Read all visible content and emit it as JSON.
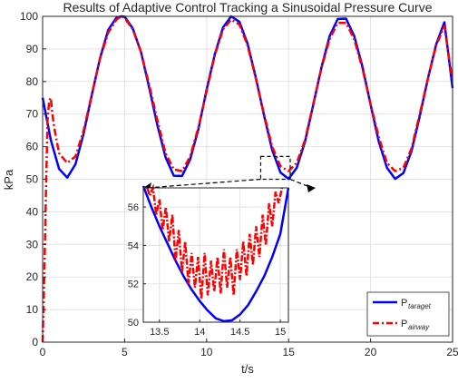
{
  "chart_data": {
    "type": "line",
    "title": "Results of Adaptive Control Tracking a Sinusoidal Pressure Curve",
    "xlabel": "t/s",
    "ylabel": "kPa",
    "xlim": [
      0,
      25
    ],
    "ylim": [
      0,
      100
    ],
    "xticks": [
      0,
      5,
      10,
      15,
      20,
      25
    ],
    "yticks": [
      0,
      10,
      20,
      30,
      40,
      50,
      60,
      70,
      80,
      90,
      100
    ],
    "grid": true,
    "legend_position": "bottom-right",
    "series": [
      {
        "name": "P_taraget",
        "legend_main": "P",
        "legend_sub": "taraget",
        "color": "#0000ff",
        "style": "solid",
        "x": [
          0,
          0.5,
          1.0,
          1.5,
          2.0,
          2.5,
          3.0,
          3.5,
          4.0,
          4.5,
          4.8,
          5.0,
          5.5,
          6.0,
          6.5,
          7.0,
          7.5,
          8.0,
          8.5,
          9.0,
          9.5,
          10.0,
          10.5,
          11.0,
          11.5,
          12.0,
          12.5,
          13.0,
          13.5,
          14.0,
          14.5,
          15.0,
          15.5,
          16.0,
          16.5,
          17.0,
          17.5,
          18.0,
          18.5,
          19.0,
          19.5,
          20.0,
          20.5,
          21.0,
          21.5,
          22.0,
          22.5,
          23.0,
          23.5,
          24.0,
          24.5,
          25.0
        ],
        "y": [
          75,
          62.1,
          53.2,
          50.5,
          54.6,
          64.0,
          75.8,
          87.2,
          95.8,
          99.6,
          100,
          99.9,
          96.3,
          89.0,
          78.1,
          66.5,
          56.7,
          51.1,
          51.0,
          56.1,
          65.4,
          77.5,
          88.3,
          96.6,
          100,
          98.3,
          91.6,
          81.3,
          69.6,
          59.0,
          52.1,
          50.1,
          53.5,
          61.5,
          72.7,
          84.3,
          93.9,
          99.2,
          99.3,
          94.0,
          84.6,
          72.9,
          61.6,
          53.5,
          50.1,
          51.9,
          58.7,
          69.3,
          81.0,
          91.4,
          98.2,
          78.0
        ]
      },
      {
        "name": "P_airway",
        "legend_main": "P",
        "legend_sub": "airway",
        "color": "#ff0000",
        "style": "dash-dot",
        "x": [
          0,
          0.1,
          0.2,
          0.3,
          0.4,
          0.5,
          0.6,
          0.7,
          1.0,
          1.5,
          2.0,
          2.5,
          3.0,
          3.5,
          4.0,
          4.5,
          4.8,
          5.0,
          5.5,
          6.0,
          6.5,
          7.0,
          7.5,
          8.0,
          8.5,
          9.0,
          9.5,
          10.0,
          10.5,
          11.0,
          11.5,
          12.0,
          12.5,
          13.0,
          13.5,
          14.0,
          14.5,
          15.0,
          15.5,
          16.0,
          16.5,
          17.0,
          17.5,
          18.0,
          18.5,
          19.0,
          19.5,
          20.0,
          20.5,
          21.0,
          21.5,
          22.0,
          22.5,
          23.0,
          23.5,
          24.0,
          24.5,
          25.0
        ],
        "y": [
          0,
          20,
          45,
          68,
          74,
          75,
          70,
          66,
          58,
          55,
          57,
          65,
          76,
          87,
          95,
          99,
          100,
          99.5,
          96,
          89,
          79,
          68,
          58,
          53,
          52.5,
          57,
          66,
          77,
          88,
          96,
          99,
          97.5,
          91,
          81,
          70,
          60,
          54,
          52.5,
          55,
          62,
          73,
          84,
          93,
          98,
          98,
          93,
          84,
          73,
          63,
          55,
          52.5,
          53.5,
          59.5,
          70,
          81,
          91,
          97,
          80
        ]
      }
    ],
    "inset": {
      "xlim": [
        13.3,
        15.1
      ],
      "ylim": [
        50,
        57
      ],
      "xticks": [
        13.5,
        14,
        14.5,
        15
      ],
      "yticks": [
        50,
        52,
        54,
        56
      ],
      "zoom_box": {
        "x": [
          13.3,
          15.1
        ],
        "y": [
          50,
          57
        ]
      },
      "target": {
        "x": [
          13.3,
          13.4,
          13.5,
          13.6,
          13.7,
          13.8,
          13.9,
          14.0,
          14.1,
          14.2,
          14.3,
          14.4,
          14.5,
          14.6,
          14.7,
          14.8,
          14.9,
          15.0,
          15.1
        ],
        "y": [
          57.1,
          56.0,
          55.0,
          54.1,
          53.2,
          52.4,
          51.7,
          51.1,
          50.6,
          50.2,
          50.05,
          50.1,
          50.4,
          50.9,
          51.6,
          52.4,
          53.4,
          54.6,
          57.0
        ]
      },
      "airway": {
        "x": [
          13.35,
          13.38,
          13.42,
          13.46,
          13.5,
          13.54,
          13.58,
          13.62,
          13.66,
          13.7,
          13.74,
          13.78,
          13.82,
          13.86,
          13.9,
          13.94,
          13.98,
          14.02,
          14.06,
          14.1,
          14.14,
          14.18,
          14.22,
          14.26,
          14.3,
          14.34,
          14.38,
          14.42,
          14.46,
          14.5,
          14.54,
          14.58,
          14.62,
          14.66,
          14.7,
          14.74,
          14.78,
          14.82,
          14.86,
          14.9,
          14.94,
          14.98,
          15.02
        ],
        "y": [
          57.0,
          56.6,
          57.0,
          55.6,
          56.4,
          54.8,
          56.0,
          54.2,
          55.6,
          53.2,
          54.8,
          52.6,
          54.2,
          52.0,
          53.6,
          51.8,
          53.4,
          51.2,
          53.6,
          51.4,
          53.2,
          51.6,
          53.4,
          51.5,
          53.8,
          51.8,
          53.4,
          51.4,
          53.8,
          52.2,
          54.2,
          52.4,
          54.6,
          53.0,
          55.0,
          53.4,
          55.6,
          54.0,
          56.2,
          55.0,
          56.8,
          56.2,
          57.0
        ]
      }
    }
  }
}
